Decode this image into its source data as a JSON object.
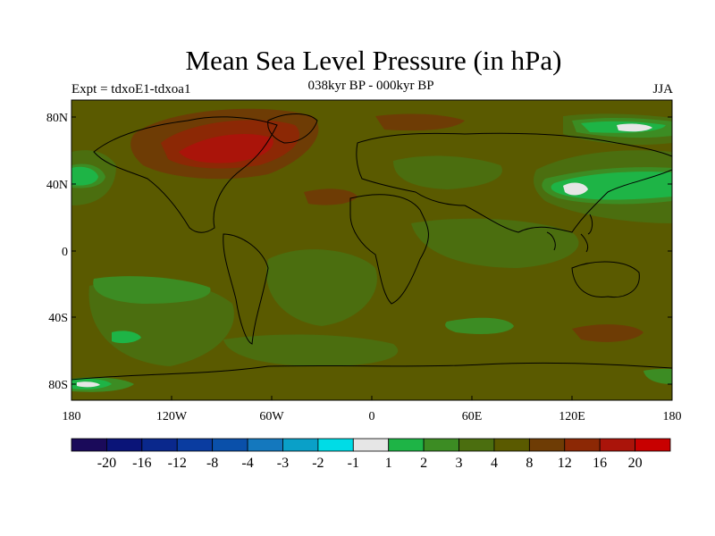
{
  "title": "Mean Sea Level Pressure (in hPa)",
  "subtitle": "038kyr BP - 000kyr BP",
  "left_label": "Expt = tdxoE1-tdxoa1",
  "right_label": "JJA",
  "lat_ticks": [
    "80N",
    "40N",
    "0",
    "40S",
    "80S"
  ],
  "lon_ticks": [
    "180",
    "120W",
    "60W",
    "0",
    "60E",
    "120E",
    "180"
  ],
  "colorbar": {
    "colors": [
      "#1a0a5a",
      "#0a1478",
      "#0a288c",
      "#0a3ca0",
      "#0a50aa",
      "#1478be",
      "#0aa0c8",
      "#00dce6",
      "#e6e6e6",
      "#1eb446",
      "#3c8c23",
      "#4b6e0f",
      "#5a5a00",
      "#6e3c05",
      "#8c2805",
      "#aa140a",
      "#c80000"
    ],
    "labels": [
      "-20",
      "-16",
      "-12",
      "-8",
      "-4",
      "-3",
      "-2",
      "-1",
      "1",
      "2",
      "3",
      "4",
      "8",
      "12",
      "16",
      "20"
    ]
  }
}
